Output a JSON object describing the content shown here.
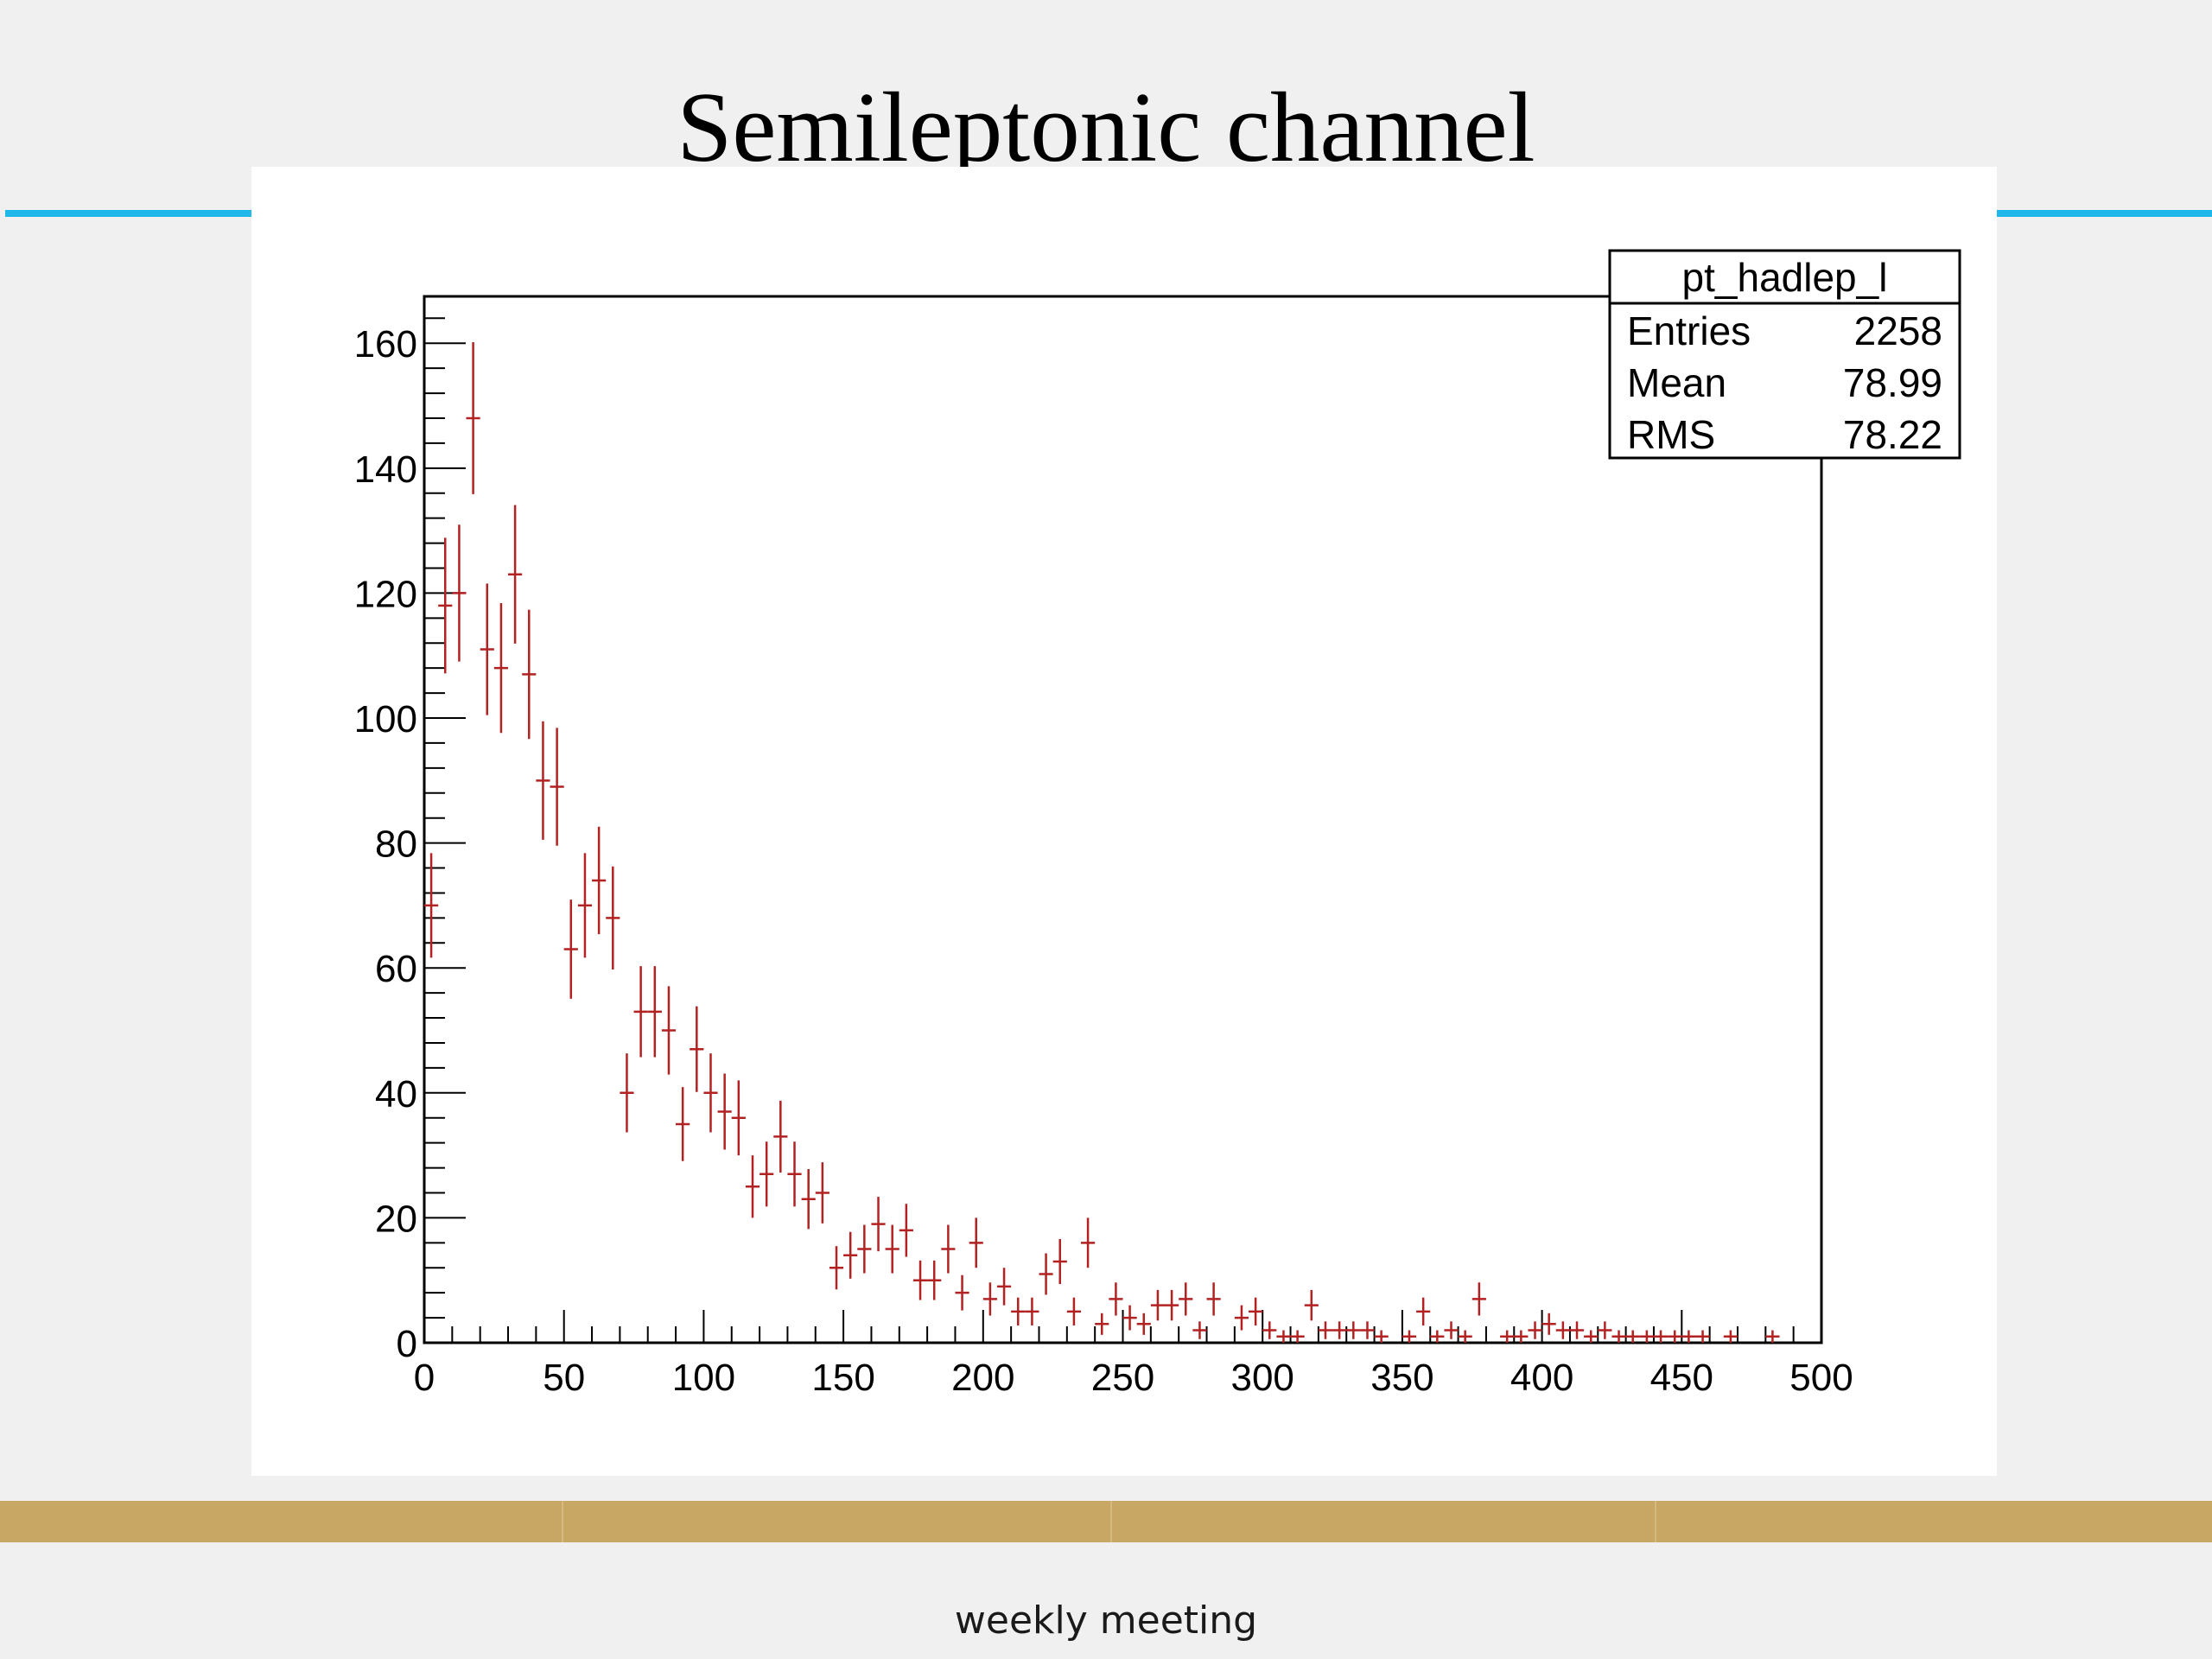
{
  "slide": {
    "title": "Semileptonic channel",
    "footer": "weekly meeting",
    "colors": {
      "accent_rule": "#1fb8ea",
      "footer_band": "#c8a664",
      "markers": "#b22222"
    }
  },
  "chart_data": {
    "type": "scatter",
    "style": "histogram points with vertical error bars",
    "title": "",
    "xlabel": "",
    "ylabel": "",
    "xlim": [
      0,
      500
    ],
    "ylim": [
      0,
      160
    ],
    "x_ticks": [
      0,
      50,
      100,
      150,
      200,
      250,
      300,
      350,
      400,
      450,
      500
    ],
    "y_ticks": [
      0,
      20,
      40,
      60,
      80,
      100,
      120,
      140,
      160
    ],
    "grid": false,
    "bin_width": 5,
    "bins": [
      {
        "x": 2.5,
        "y": 70
      },
      {
        "x": 7.5,
        "y": 118
      },
      {
        "x": 12.5,
        "y": 120
      },
      {
        "x": 17.5,
        "y": 148
      },
      {
        "x": 22.5,
        "y": 111
      },
      {
        "x": 27.5,
        "y": 108
      },
      {
        "x": 32.5,
        "y": 123
      },
      {
        "x": 37.5,
        "y": 107
      },
      {
        "x": 42.5,
        "y": 90
      },
      {
        "x": 47.5,
        "y": 89
      },
      {
        "x": 52.5,
        "y": 63
      },
      {
        "x": 57.5,
        "y": 70
      },
      {
        "x": 62.5,
        "y": 74
      },
      {
        "x": 67.5,
        "y": 68
      },
      {
        "x": 72.5,
        "y": 40
      },
      {
        "x": 77.5,
        "y": 53
      },
      {
        "x": 82.5,
        "y": 53
      },
      {
        "x": 87.5,
        "y": 50
      },
      {
        "x": 92.5,
        "y": 35
      },
      {
        "x": 97.5,
        "y": 47
      },
      {
        "x": 102.5,
        "y": 40
      },
      {
        "x": 107.5,
        "y": 37
      },
      {
        "x": 112.5,
        "y": 36
      },
      {
        "x": 117.5,
        "y": 25
      },
      {
        "x": 122.5,
        "y": 27
      },
      {
        "x": 127.5,
        "y": 33
      },
      {
        "x": 132.5,
        "y": 27
      },
      {
        "x": 137.5,
        "y": 23
      },
      {
        "x": 142.5,
        "y": 24
      },
      {
        "x": 147.5,
        "y": 12
      },
      {
        "x": 152.5,
        "y": 14
      },
      {
        "x": 157.5,
        "y": 15
      },
      {
        "x": 162.5,
        "y": 19
      },
      {
        "x": 167.5,
        "y": 15
      },
      {
        "x": 172.5,
        "y": 18
      },
      {
        "x": 177.5,
        "y": 10
      },
      {
        "x": 182.5,
        "y": 10
      },
      {
        "x": 187.5,
        "y": 15
      },
      {
        "x": 192.5,
        "y": 8
      },
      {
        "x": 197.5,
        "y": 16
      },
      {
        "x": 202.5,
        "y": 7
      },
      {
        "x": 207.5,
        "y": 9
      },
      {
        "x": 212.5,
        "y": 5
      },
      {
        "x": 217.5,
        "y": 5
      },
      {
        "x": 222.5,
        "y": 11
      },
      {
        "x": 227.5,
        "y": 13
      },
      {
        "x": 232.5,
        "y": 5
      },
      {
        "x": 237.5,
        "y": 16
      },
      {
        "x": 242.5,
        "y": 3
      },
      {
        "x": 247.5,
        "y": 7
      },
      {
        "x": 252.5,
        "y": 4
      },
      {
        "x": 257.5,
        "y": 3
      },
      {
        "x": 262.5,
        "y": 6
      },
      {
        "x": 267.5,
        "y": 6
      },
      {
        "x": 272.5,
        "y": 7
      },
      {
        "x": 277.5,
        "y": 2
      },
      {
        "x": 282.5,
        "y": 7
      },
      {
        "x": 292.5,
        "y": 4
      },
      {
        "x": 297.5,
        "y": 5
      },
      {
        "x": 302.5,
        "y": 2
      },
      {
        "x": 307.5,
        "y": 1
      },
      {
        "x": 312.5,
        "y": 1
      },
      {
        "x": 317.5,
        "y": 6
      },
      {
        "x": 322.5,
        "y": 2
      },
      {
        "x": 327.5,
        "y": 2
      },
      {
        "x": 332.5,
        "y": 2
      },
      {
        "x": 337.5,
        "y": 2
      },
      {
        "x": 342.5,
        "y": 1
      },
      {
        "x": 352.5,
        "y": 1
      },
      {
        "x": 357.5,
        "y": 5
      },
      {
        "x": 362.5,
        "y": 1
      },
      {
        "x": 367.5,
        "y": 2
      },
      {
        "x": 372.5,
        "y": 1
      },
      {
        "x": 377.5,
        "y": 7
      },
      {
        "x": 387.5,
        "y": 1
      },
      {
        "x": 392.5,
        "y": 1
      },
      {
        "x": 397.5,
        "y": 2
      },
      {
        "x": 402.5,
        "y": 3
      },
      {
        "x": 407.5,
        "y": 2
      },
      {
        "x": 412.5,
        "y": 2
      },
      {
        "x": 417.5,
        "y": 1
      },
      {
        "x": 422.5,
        "y": 2
      },
      {
        "x": 427.5,
        "y": 1
      },
      {
        "x": 432.5,
        "y": 1
      },
      {
        "x": 437.5,
        "y": 1
      },
      {
        "x": 442.5,
        "y": 1
      },
      {
        "x": 447.5,
        "y": 1
      },
      {
        "x": 452.5,
        "y": 1
      },
      {
        "x": 457.5,
        "y": 1
      },
      {
        "x": 467.5,
        "y": 1
      },
      {
        "x": 482.5,
        "y": 1
      }
    ],
    "stats_box": {
      "title": "pt_hadlep_l",
      "rows": [
        {
          "label": "Entries",
          "value": "2258"
        },
        {
          "label": "Mean",
          "value": "78.99"
        },
        {
          "label": "RMS",
          "value": "78.22"
        }
      ],
      "placement": "top-right"
    }
  }
}
